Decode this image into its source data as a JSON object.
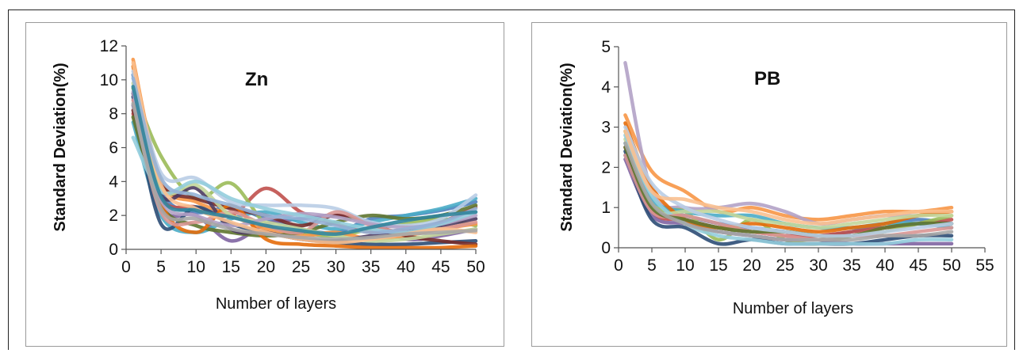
{
  "chart_data": [
    {
      "type": "line",
      "title": "Zn",
      "xlabel": "Number of layers",
      "ylabel": "Standard Deviation(%)",
      "xlim": [
        0,
        50
      ],
      "ylim": [
        0,
        12
      ],
      "xticks": [
        "0",
        "5",
        "10",
        "15",
        "20",
        "25",
        "30",
        "35",
        "40",
        "45",
        "50"
      ],
      "yticks": [
        "0",
        "2",
        "4",
        "6",
        "8",
        "10",
        "12"
      ],
      "grid": false,
      "legend": "none",
      "series": [
        {
          "color": "#4f81bd",
          "x": [
            1,
            5,
            10,
            15,
            20,
            25,
            30,
            35,
            40,
            45,
            50
          ],
          "y": [
            10.3,
            3.5,
            2.2,
            2.5,
            1.8,
            1.2,
            1.0,
            1.8,
            2.0,
            2.3,
            2.8
          ]
        },
        {
          "color": "#c0504d",
          "x": [
            1,
            5,
            10,
            15,
            20,
            25,
            30,
            35,
            40,
            45,
            50
          ],
          "y": [
            8.0,
            3.0,
            2.5,
            2.0,
            3.6,
            2.2,
            1.5,
            1.0,
            1.2,
            1.6,
            2.5
          ]
        },
        {
          "color": "#9bbb59",
          "x": [
            1,
            5,
            10,
            15,
            20,
            25,
            30,
            35,
            40,
            45,
            50
          ],
          "y": [
            9.5,
            5.5,
            3.0,
            3.9,
            1.5,
            1.0,
            0.8,
            1.2,
            1.5,
            1.8,
            1.4
          ]
        },
        {
          "color": "#8064a2",
          "x": [
            1,
            5,
            10,
            15,
            20,
            25,
            30,
            35,
            40,
            45,
            50
          ],
          "y": [
            8.5,
            2.5,
            2.0,
            0.5,
            1.5,
            1.8,
            2.0,
            1.5,
            0.6,
            0.8,
            1.2
          ]
        },
        {
          "color": "#4bacc6",
          "x": [
            1,
            5,
            10,
            15,
            20,
            25,
            30,
            35,
            40,
            45,
            50
          ],
          "y": [
            7.5,
            2.0,
            1.0,
            1.8,
            2.2,
            1.6,
            1.2,
            1.6,
            2.0,
            2.4,
            3.0
          ]
        },
        {
          "color": "#f79646",
          "x": [
            1,
            5,
            10,
            15,
            20,
            25,
            30,
            35,
            40,
            45,
            50
          ],
          "y": [
            11.2,
            4.0,
            2.8,
            2.0,
            1.2,
            0.8,
            1.0,
            0.6,
            0.8,
            1.2,
            1.5
          ]
        },
        {
          "color": "#2c4d75",
          "x": [
            1,
            5,
            10,
            15,
            20,
            25,
            30,
            35,
            40,
            45,
            50
          ],
          "y": [
            9.0,
            1.5,
            2.5,
            1.5,
            1.0,
            0.6,
            0.4,
            0.3,
            0.3,
            0.4,
            0.5
          ]
        },
        {
          "color": "#772c2a",
          "x": [
            1,
            5,
            10,
            15,
            20,
            25,
            30,
            35,
            40,
            45,
            50
          ],
          "y": [
            8.2,
            3.8,
            3.0,
            2.4,
            2.0,
            1.4,
            2.0,
            1.5,
            0.8,
            0.5,
            0.3
          ]
        },
        {
          "color": "#5f7530",
          "x": [
            1,
            5,
            10,
            15,
            20,
            25,
            30,
            35,
            40,
            45,
            50
          ],
          "y": [
            7.8,
            2.6,
            1.4,
            1.0,
            0.8,
            1.0,
            1.6,
            2.0,
            1.8,
            2.0,
            2.6
          ]
        },
        {
          "color": "#4d3b62",
          "x": [
            1,
            5,
            10,
            15,
            20,
            25,
            30,
            35,
            40,
            45,
            50
          ],
          "y": [
            9.2,
            3.2,
            3.6,
            1.2,
            1.0,
            0.6,
            0.5,
            0.8,
            1.0,
            1.4,
            1.8
          ]
        },
        {
          "color": "#e46c0a",
          "x": [
            1,
            5,
            10,
            15,
            20,
            25,
            30,
            35,
            40,
            45,
            50
          ],
          "y": [
            10.8,
            2.8,
            1.0,
            2.6,
            0.6,
            0.3,
            0.2,
            0.1,
            0.1,
            0.1,
            0.2
          ]
        },
        {
          "color": "#b9cde5",
          "x": [
            1,
            5,
            10,
            15,
            20,
            25,
            30,
            35,
            40,
            45,
            50
          ],
          "y": [
            10.5,
            4.5,
            4.2,
            2.8,
            2.6,
            2.6,
            2.4,
            1.6,
            1.4,
            1.8,
            3.2
          ]
        },
        {
          "color": "#d99694",
          "x": [
            1,
            5,
            10,
            15,
            20,
            25,
            30,
            35,
            40,
            45,
            50
          ],
          "y": [
            8.8,
            2.2,
            1.6,
            2.2,
            1.4,
            1.0,
            2.2,
            1.4,
            1.0,
            1.2,
            1.6
          ]
        },
        {
          "color": "#c3d69b",
          "x": [
            1,
            5,
            10,
            15,
            20,
            25,
            30,
            35,
            40,
            45,
            50
          ],
          "y": [
            9.8,
            3.6,
            3.8,
            2.0,
            1.6,
            1.2,
            0.8,
            0.5,
            0.6,
            0.9,
            1.2
          ]
        },
        {
          "color": "#b3a2c7",
          "x": [
            1,
            5,
            10,
            15,
            20,
            25,
            30,
            35,
            40,
            45,
            50
          ],
          "y": [
            9.3,
            2.9,
            2.0,
            1.4,
            1.8,
            2.1,
            1.9,
            1.5,
            1.3,
            1.5,
            2.0
          ]
        },
        {
          "color": "#93cddd",
          "x": [
            1,
            5,
            10,
            15,
            20,
            25,
            30,
            35,
            40,
            45,
            50
          ],
          "y": [
            6.6,
            3.4,
            4.0,
            3.0,
            2.4,
            2.0,
            1.6,
            1.2,
            1.0,
            1.5,
            2.2
          ]
        },
        {
          "color": "#fac090",
          "x": [
            1,
            5,
            10,
            15,
            20,
            25,
            30,
            35,
            40,
            45,
            50
          ],
          "y": [
            11.0,
            3.8,
            2.4,
            1.6,
            1.0,
            0.6,
            0.4,
            0.6,
            0.9,
            1.2,
            1.0
          ]
        },
        {
          "color": "#95b3d7",
          "x": [
            1,
            5,
            10,
            15,
            20,
            25,
            30,
            35,
            40,
            45,
            50
          ],
          "y": [
            10.1,
            4.2,
            3.2,
            2.6,
            2.0,
            1.8,
            1.4,
            1.0,
            1.2,
            1.6,
            2.4
          ]
        },
        {
          "color": "#31859c",
          "x": [
            1,
            5,
            10,
            15,
            20,
            25,
            30,
            35,
            40,
            45,
            50
          ],
          "y": [
            9.6,
            3.1,
            2.3,
            1.9,
            1.4,
            1.1,
            0.9,
            1.3,
            1.7,
            2.0,
            2.2
          ]
        },
        {
          "color": "#a6a6a6",
          "x": [
            1,
            5,
            10,
            15,
            20,
            25,
            30,
            35,
            40,
            45,
            50
          ],
          "y": [
            8.6,
            2.4,
            1.8,
            1.2,
            0.9,
            0.7,
            0.6,
            0.7,
            0.9,
            1.0,
            1.1
          ]
        }
      ]
    },
    {
      "type": "line",
      "title": "PB",
      "xlabel": "Number of layers",
      "ylabel": "Standard Deviation(%)",
      "xlim": [
        0,
        55
      ],
      "ylim": [
        0,
        5
      ],
      "xticks": [
        "0",
        "5",
        "10",
        "15",
        "20",
        "25",
        "30",
        "35",
        "40",
        "45",
        "50",
        "55"
      ],
      "yticks": [
        "0",
        "1",
        "2",
        "3",
        "4",
        "5"
      ],
      "grid": false,
      "legend": "none",
      "series": [
        {
          "color": "#f79646",
          "x": [
            1,
            5,
            10,
            15,
            20,
            25,
            30,
            35,
            40,
            45,
            50
          ],
          "y": [
            3.3,
            1.9,
            1.4,
            0.9,
            1.0,
            0.8,
            0.7,
            0.8,
            0.9,
            0.9,
            1.0
          ]
        },
        {
          "color": "#b3a2c7",
          "x": [
            1,
            5,
            10,
            15,
            20,
            25,
            30,
            35,
            40,
            45,
            50
          ],
          "y": [
            4.6,
            1.4,
            1.0,
            1.0,
            1.1,
            0.9,
            0.6,
            0.7,
            0.8,
            0.8,
            0.9
          ]
        },
        {
          "color": "#4f81bd",
          "x": [
            1,
            5,
            10,
            15,
            20,
            25,
            30,
            35,
            40,
            45,
            50
          ],
          "y": [
            2.3,
            1.0,
            0.8,
            0.6,
            0.5,
            0.4,
            0.3,
            0.4,
            0.6,
            0.7,
            0.6
          ]
        },
        {
          "color": "#c0504d",
          "x": [
            1,
            5,
            10,
            15,
            20,
            25,
            30,
            35,
            40,
            45,
            50
          ],
          "y": [
            2.5,
            0.9,
            0.7,
            0.5,
            0.4,
            0.3,
            0.3,
            0.4,
            0.5,
            0.6,
            0.7
          ]
        },
        {
          "color": "#9bbb59",
          "x": [
            1,
            5,
            10,
            15,
            20,
            25,
            30,
            35,
            40,
            45,
            50
          ],
          "y": [
            2.9,
            1.1,
            0.9,
            0.2,
            0.7,
            0.2,
            0.1,
            0.3,
            0.4,
            0.6,
            0.8
          ]
        },
        {
          "color": "#8064a2",
          "x": [
            1,
            5,
            10,
            15,
            20,
            25,
            30,
            35,
            40,
            45,
            50
          ],
          "y": [
            2.2,
            0.8,
            0.6,
            0.4,
            0.3,
            0.2,
            0.2,
            0.1,
            0.1,
            0.1,
            0.1
          ]
        },
        {
          "color": "#4bacc6",
          "x": [
            1,
            5,
            10,
            15,
            20,
            25,
            30,
            35,
            40,
            45,
            50
          ],
          "y": [
            2.6,
            1.2,
            0.9,
            0.8,
            0.8,
            0.6,
            0.5,
            0.5,
            0.6,
            0.6,
            0.5
          ]
        },
        {
          "color": "#2c4d75",
          "x": [
            1,
            5,
            10,
            15,
            20,
            25,
            30,
            35,
            40,
            45,
            50
          ],
          "y": [
            2.4,
            0.7,
            0.5,
            0.1,
            0.2,
            0.1,
            0.1,
            0.1,
            0.2,
            0.3,
            0.3
          ]
        },
        {
          "color": "#e46c0a",
          "x": [
            1,
            5,
            10,
            15,
            20,
            25,
            30,
            35,
            40,
            45,
            50
          ],
          "y": [
            3.1,
            1.5,
            0.7,
            0.5,
            0.6,
            0.5,
            0.4,
            0.5,
            0.6,
            0.8,
            0.9
          ]
        },
        {
          "color": "#c3d69b",
          "x": [
            1,
            5,
            10,
            15,
            20,
            25,
            30,
            35,
            40,
            45,
            50
          ],
          "y": [
            2.7,
            1.0,
            0.9,
            0.9,
            0.7,
            0.6,
            0.5,
            0.6,
            0.7,
            0.8,
            0.8
          ]
        },
        {
          "color": "#93cddd",
          "x": [
            1,
            5,
            10,
            15,
            20,
            25,
            30,
            35,
            40,
            45,
            50
          ],
          "y": [
            2.8,
            1.3,
            0.6,
            0.3,
            0.2,
            0.1,
            0.1,
            0.1,
            0.1,
            0.2,
            0.2
          ]
        },
        {
          "color": "#d99694",
          "x": [
            1,
            5,
            10,
            15,
            20,
            25,
            30,
            35,
            40,
            45,
            50
          ],
          "y": [
            2.3,
            0.9,
            0.8,
            0.6,
            0.4,
            0.3,
            0.2,
            0.3,
            0.3,
            0.4,
            0.5
          ]
        },
        {
          "color": "#5f7530",
          "x": [
            1,
            5,
            10,
            15,
            20,
            25,
            30,
            35,
            40,
            45,
            50
          ],
          "y": [
            2.5,
            1.0,
            0.7,
            0.5,
            0.4,
            0.4,
            0.3,
            0.3,
            0.5,
            0.6,
            0.6
          ]
        },
        {
          "color": "#b9cde5",
          "x": [
            1,
            5,
            10,
            15,
            20,
            25,
            30,
            35,
            40,
            45,
            50
          ],
          "y": [
            3.0,
            1.6,
            1.0,
            0.7,
            0.5,
            0.4,
            0.3,
            0.3,
            0.4,
            0.5,
            0.6
          ]
        },
        {
          "color": "#a6a6a6",
          "x": [
            1,
            5,
            10,
            15,
            20,
            25,
            30,
            35,
            40,
            45,
            50
          ],
          "y": [
            2.6,
            1.1,
            0.6,
            0.4,
            0.3,
            0.2,
            0.2,
            0.2,
            0.3,
            0.3,
            0.4
          ]
        },
        {
          "color": "#fac090",
          "x": [
            1,
            5,
            10,
            15,
            20,
            25,
            30,
            35,
            40,
            45,
            50
          ],
          "y": [
            2.9,
            1.4,
            1.2,
            1.0,
            0.9,
            0.7,
            0.6,
            0.7,
            0.8,
            0.9,
            0.9
          ]
        }
      ]
    }
  ]
}
